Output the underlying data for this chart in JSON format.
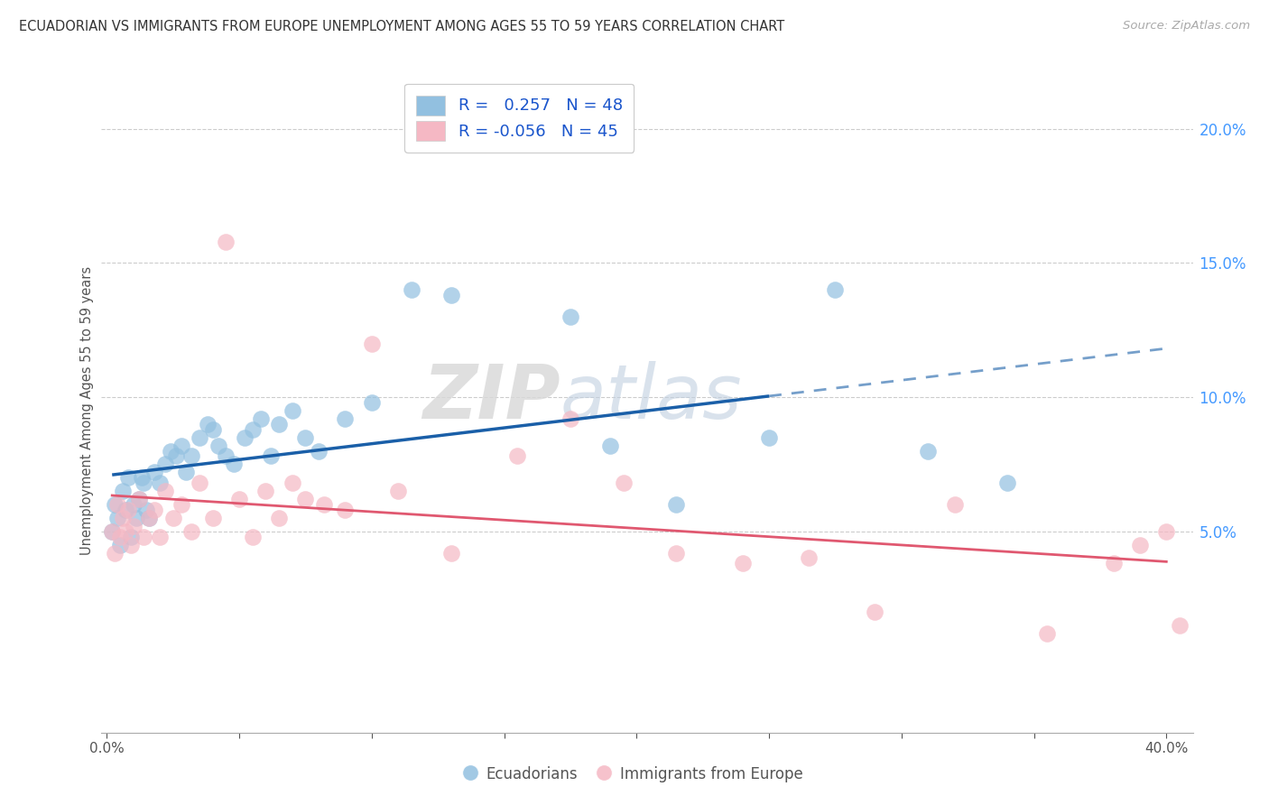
{
  "title": "ECUADORIAN VS IMMIGRANTS FROM EUROPE UNEMPLOYMENT AMONG AGES 55 TO 59 YEARS CORRELATION CHART",
  "source": "Source: ZipAtlas.com",
  "ylabel": "Unemployment Among Ages 55 to 59 years",
  "right_yticks": [
    "20.0%",
    "15.0%",
    "10.0%",
    "5.0%"
  ],
  "right_ytick_vals": [
    0.2,
    0.15,
    0.1,
    0.05
  ],
  "xlim": [
    -0.002,
    0.41
  ],
  "ylim": [
    -0.025,
    0.215
  ],
  "ecuadorian_R": 0.257,
  "ecuadorian_N": 48,
  "europe_R": -0.056,
  "europe_N": 45,
  "blue_color": "#92c0e0",
  "pink_color": "#f5b8c4",
  "line_blue": "#1a5fa8",
  "line_pink": "#e05870",
  "watermark_zip": "ZIP",
  "watermark_atlas": "atlas",
  "ecuadorians_x": [
    0.002,
    0.003,
    0.004,
    0.005,
    0.006,
    0.007,
    0.008,
    0.009,
    0.01,
    0.011,
    0.012,
    0.013,
    0.014,
    0.015,
    0.016,
    0.018,
    0.02,
    0.022,
    0.024,
    0.026,
    0.028,
    0.03,
    0.032,
    0.035,
    0.038,
    0.04,
    0.042,
    0.045,
    0.048,
    0.052,
    0.055,
    0.058,
    0.062,
    0.065,
    0.07,
    0.075,
    0.08,
    0.09,
    0.1,
    0.115,
    0.13,
    0.175,
    0.19,
    0.215,
    0.25,
    0.275,
    0.31,
    0.34
  ],
  "ecuadorians_y": [
    0.05,
    0.06,
    0.055,
    0.045,
    0.065,
    0.058,
    0.07,
    0.048,
    0.06,
    0.055,
    0.062,
    0.07,
    0.068,
    0.058,
    0.055,
    0.072,
    0.068,
    0.075,
    0.08,
    0.078,
    0.082,
    0.072,
    0.078,
    0.085,
    0.09,
    0.088,
    0.082,
    0.078,
    0.075,
    0.085,
    0.088,
    0.092,
    0.078,
    0.09,
    0.095,
    0.085,
    0.08,
    0.092,
    0.098,
    0.14,
    0.138,
    0.13,
    0.082,
    0.06,
    0.085,
    0.14,
    0.08,
    0.068
  ],
  "europe_x": [
    0.002,
    0.003,
    0.004,
    0.005,
    0.006,
    0.007,
    0.008,
    0.009,
    0.01,
    0.012,
    0.014,
    0.016,
    0.018,
    0.02,
    0.022,
    0.025,
    0.028,
    0.032,
    0.035,
    0.04,
    0.045,
    0.05,
    0.055,
    0.06,
    0.065,
    0.07,
    0.075,
    0.082,
    0.09,
    0.1,
    0.11,
    0.13,
    0.155,
    0.175,
    0.195,
    0.215,
    0.24,
    0.265,
    0.29,
    0.32,
    0.355,
    0.38,
    0.39,
    0.4,
    0.405
  ],
  "europe_y": [
    0.05,
    0.042,
    0.06,
    0.048,
    0.055,
    0.05,
    0.058,
    0.045,
    0.052,
    0.062,
    0.048,
    0.055,
    0.058,
    0.048,
    0.065,
    0.055,
    0.06,
    0.05,
    0.068,
    0.055,
    0.158,
    0.062,
    0.048,
    0.065,
    0.055,
    0.068,
    0.062,
    0.06,
    0.058,
    0.12,
    0.065,
    0.042,
    0.078,
    0.092,
    0.068,
    0.042,
    0.038,
    0.04,
    0.02,
    0.06,
    0.012,
    0.038,
    0.045,
    0.05,
    0.015
  ]
}
